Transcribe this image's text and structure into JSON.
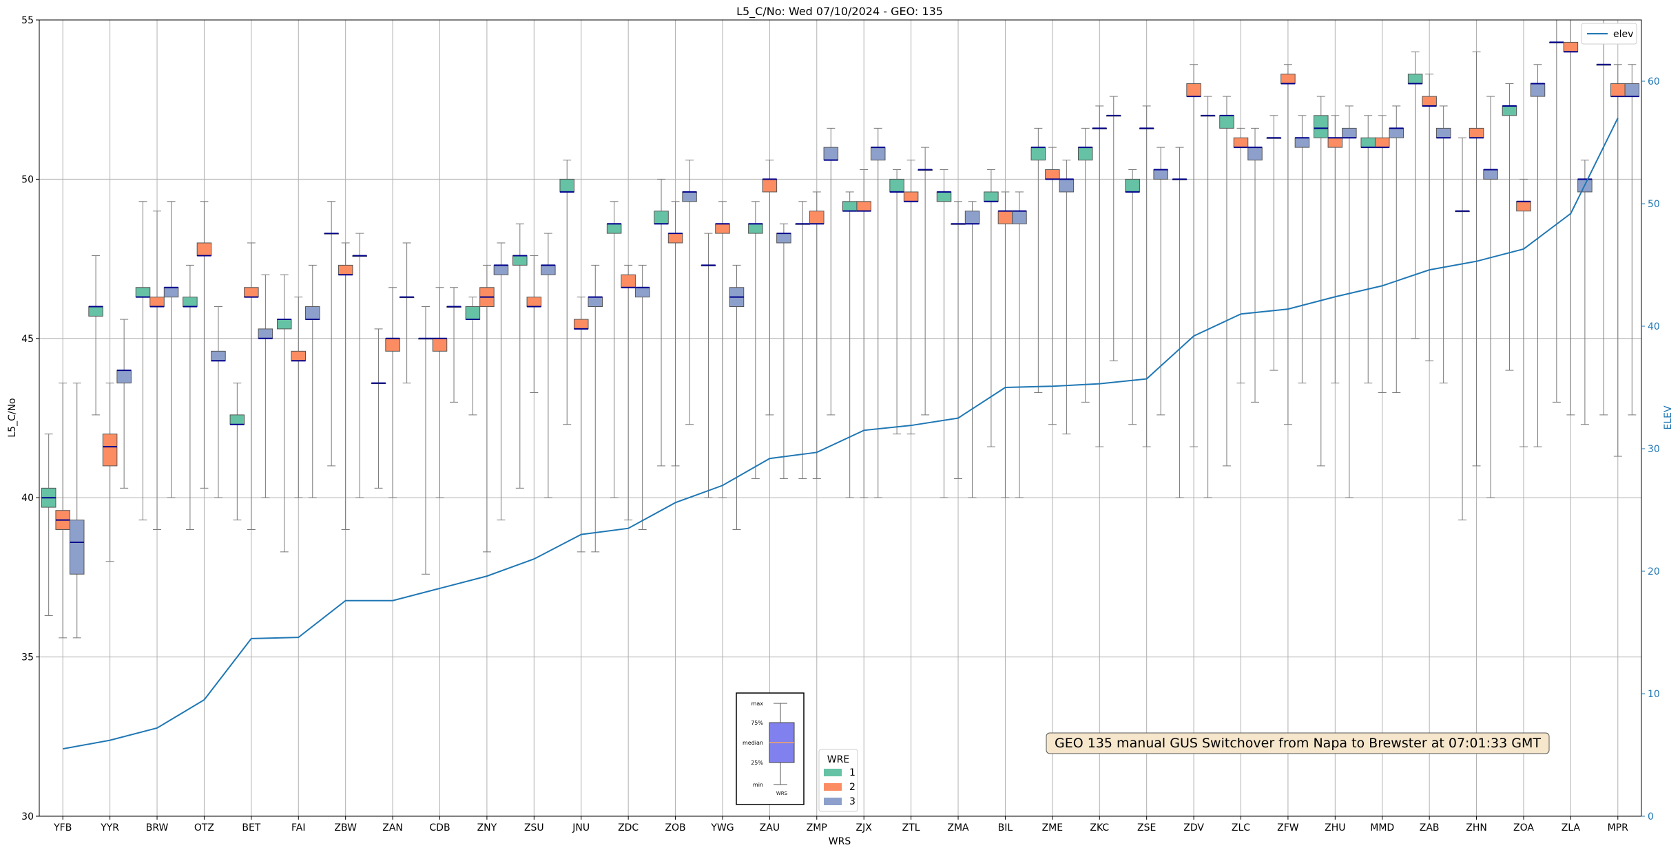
{
  "chart_data": {
    "type": "box",
    "title": "L5_C/No: Wed 07/10/2024 - GEO: 135",
    "xlabel": "WRS",
    "ylabel": "L5_C/No",
    "ylabel_right": "ELEV",
    "ylim": [
      30,
      55
    ],
    "ylim_right": [
      0,
      65
    ],
    "yticks": [
      30,
      35,
      40,
      45,
      50,
      55
    ],
    "yticks_right": [
      0,
      10,
      20,
      30,
      40,
      50,
      60
    ],
    "grid": true,
    "categories": [
      "YFB",
      "YYR",
      "BRW",
      "OTZ",
      "BET",
      "FAI",
      "ZBW",
      "ZAN",
      "CDB",
      "ZNY",
      "ZSU",
      "JNU",
      "ZDC",
      "ZOB",
      "YWG",
      "ZAU",
      "ZMP",
      "ZJX",
      "ZTL",
      "ZMA",
      "BIL",
      "ZME",
      "ZKC",
      "ZSE",
      "ZDV",
      "ZLC",
      "ZFW",
      "ZHU",
      "MMD",
      "ZAB",
      "ZHN",
      "ZOA",
      "ZLA",
      "MPR"
    ],
    "wre_colors": {
      "1": "#66c2a5",
      "2": "#fc8d62",
      "3": "#8da0cb"
    },
    "median_color": "#00008b",
    "series": [
      {
        "name": "1",
        "boxes": [
          [
            36.3,
            39.7,
            40.0,
            40.3,
            42.0
          ],
          [
            42.6,
            45.7,
            46.0,
            46.0,
            47.6
          ],
          [
            39.3,
            46.3,
            46.3,
            46.6,
            49.3
          ],
          [
            39.0,
            46.0,
            46.0,
            46.3,
            47.3
          ],
          [
            39.3,
            42.3,
            42.3,
            42.6,
            43.6
          ],
          [
            38.3,
            45.3,
            45.6,
            45.6,
            47.0
          ],
          [
            41.0,
            48.3,
            48.3,
            48.3,
            49.3
          ],
          [
            40.3,
            43.6,
            43.6,
            43.6,
            45.3
          ],
          [
            37.6,
            45.0,
            45.0,
            45.0,
            46.0
          ],
          [
            42.6,
            45.6,
            45.6,
            46.0,
            46.3
          ],
          [
            40.3,
            47.3,
            47.6,
            47.6,
            48.6
          ],
          [
            42.3,
            49.6,
            49.6,
            50.0,
            50.6
          ],
          [
            40.0,
            48.3,
            48.6,
            48.6,
            49.3
          ],
          [
            41.0,
            48.6,
            48.6,
            49.0,
            50.0
          ],
          [
            40.0,
            47.3,
            47.3,
            47.3,
            48.3
          ],
          [
            40.6,
            48.3,
            48.6,
            48.6,
            49.3
          ],
          [
            40.6,
            48.6,
            48.6,
            48.6,
            49.3
          ],
          [
            40.0,
            49.0,
            49.0,
            49.3,
            49.6
          ],
          [
            42.0,
            49.6,
            49.6,
            50.0,
            50.3
          ],
          [
            40.0,
            49.3,
            49.6,
            49.6,
            50.3
          ],
          [
            41.6,
            49.3,
            49.3,
            49.6,
            50.3
          ],
          [
            43.3,
            50.6,
            51.0,
            51.0,
            51.6
          ],
          [
            43.0,
            50.6,
            51.0,
            51.0,
            51.6
          ],
          [
            42.3,
            49.6,
            49.6,
            50.0,
            50.3
          ],
          [
            40.0,
            50.0,
            50.0,
            50.0,
            51.0
          ],
          [
            41.0,
            51.6,
            52.0,
            52.0,
            52.6
          ],
          [
            44.0,
            51.3,
            51.3,
            51.3,
            52.0
          ],
          [
            41.0,
            51.3,
            51.6,
            52.0,
            52.6
          ],
          [
            43.6,
            51.0,
            51.0,
            51.3,
            52.0
          ],
          [
            45.0,
            53.0,
            53.0,
            53.3,
            54.0
          ],
          [
            39.3,
            49.0,
            49.0,
            49.0,
            51.3
          ],
          [
            44.0,
            52.0,
            52.3,
            52.3,
            53.0
          ],
          [
            43.0,
            54.3,
            54.3,
            54.3,
            55.0
          ],
          [
            42.6,
            53.6,
            53.6,
            53.6,
            55.0
          ]
        ]
      },
      {
        "name": "2",
        "boxes": [
          [
            35.6,
            39.0,
            39.3,
            39.6,
            43.6
          ],
          [
            38.0,
            41.0,
            41.6,
            42.0,
            43.6
          ],
          [
            39.0,
            46.0,
            46.0,
            46.3,
            49.0
          ],
          [
            40.3,
            47.6,
            47.6,
            48.0,
            49.3
          ],
          [
            39.0,
            46.3,
            46.3,
            46.6,
            48.0
          ],
          [
            40.0,
            44.3,
            44.3,
            44.6,
            46.3
          ],
          [
            39.0,
            47.0,
            47.0,
            47.3,
            48.0
          ],
          [
            40.0,
            44.6,
            45.0,
            45.0,
            46.6
          ],
          [
            40.0,
            44.6,
            45.0,
            45.0,
            46.6
          ],
          [
            38.3,
            46.0,
            46.3,
            46.6,
            47.3
          ],
          [
            43.3,
            46.0,
            46.0,
            46.3,
            47.6
          ],
          [
            38.3,
            45.3,
            45.3,
            45.6,
            46.3
          ],
          [
            39.3,
            46.6,
            46.6,
            47.0,
            47.3
          ],
          [
            41.0,
            48.0,
            48.3,
            48.3,
            49.3
          ],
          [
            40.0,
            48.3,
            48.6,
            48.6,
            49.3
          ],
          [
            42.6,
            49.6,
            50.0,
            50.0,
            50.6
          ],
          [
            40.6,
            48.6,
            48.6,
            49.0,
            49.6
          ],
          [
            40.0,
            49.0,
            49.0,
            49.3,
            50.3
          ],
          [
            42.0,
            49.3,
            49.3,
            49.6,
            50.6
          ],
          [
            40.6,
            48.6,
            48.6,
            48.6,
            49.3
          ],
          [
            40.0,
            48.6,
            49.0,
            49.0,
            49.6
          ],
          [
            42.3,
            50.0,
            50.0,
            50.3,
            51.0
          ],
          [
            41.6,
            51.6,
            51.6,
            51.6,
            52.3
          ],
          [
            41.6,
            51.6,
            51.6,
            51.6,
            52.3
          ],
          [
            41.6,
            52.6,
            52.6,
            53.0,
            53.6
          ],
          [
            43.6,
            51.0,
            51.0,
            51.3,
            51.6
          ],
          [
            42.3,
            53.0,
            53.0,
            53.3,
            53.6
          ],
          [
            43.6,
            51.0,
            51.3,
            51.3,
            52.0
          ],
          [
            43.3,
            51.0,
            51.0,
            51.3,
            52.0
          ],
          [
            44.3,
            52.3,
            52.3,
            52.6,
            53.3
          ],
          [
            41.0,
            51.3,
            51.3,
            51.6,
            54.0
          ],
          [
            41.6,
            49.0,
            49.3,
            49.3,
            50.0
          ],
          [
            42.6,
            54.0,
            54.0,
            54.3,
            55.0
          ],
          [
            41.3,
            52.6,
            52.6,
            53.0,
            53.6
          ]
        ]
      },
      {
        "name": "3",
        "boxes": [
          [
            35.6,
            37.6,
            38.6,
            39.3,
            43.6
          ],
          [
            40.3,
            43.6,
            44.0,
            44.0,
            45.6
          ],
          [
            40.0,
            46.3,
            46.6,
            46.6,
            49.3
          ],
          [
            40.0,
            44.3,
            44.3,
            44.6,
            46.0
          ],
          [
            40.0,
            45.0,
            45.0,
            45.3,
            47.0
          ],
          [
            40.0,
            45.6,
            45.6,
            46.0,
            47.3
          ],
          [
            40.0,
            47.6,
            47.6,
            47.6,
            48.3
          ],
          [
            43.6,
            46.3,
            46.3,
            46.3,
            48.0
          ],
          [
            43.0,
            46.0,
            46.0,
            46.0,
            46.6
          ],
          [
            39.3,
            47.0,
            47.3,
            47.3,
            48.0
          ],
          [
            40.0,
            47.0,
            47.3,
            47.3,
            48.3
          ],
          [
            38.3,
            46.0,
            46.3,
            46.3,
            47.3
          ],
          [
            39.0,
            46.3,
            46.6,
            46.6,
            47.3
          ],
          [
            42.3,
            49.3,
            49.6,
            49.6,
            50.6
          ],
          [
            39.0,
            46.0,
            46.3,
            46.6,
            47.3
          ],
          [
            40.6,
            48.0,
            48.3,
            48.3,
            48.6
          ],
          [
            42.6,
            50.6,
            50.6,
            51.0,
            51.6
          ],
          [
            40.0,
            50.6,
            51.0,
            51.0,
            51.6
          ],
          [
            42.6,
            50.3,
            50.3,
            50.3,
            51.0
          ],
          [
            40.0,
            48.6,
            48.6,
            49.0,
            49.3
          ],
          [
            40.0,
            48.6,
            49.0,
            49.0,
            49.6
          ],
          [
            42.0,
            49.6,
            50.0,
            50.0,
            50.6
          ],
          [
            44.3,
            52.0,
            52.0,
            52.0,
            52.6
          ],
          [
            42.6,
            50.0,
            50.3,
            50.3,
            51.0
          ],
          [
            40.0,
            52.0,
            52.0,
            52.0,
            52.6
          ],
          [
            43.0,
            50.6,
            51.0,
            51.0,
            51.6
          ],
          [
            43.6,
            51.0,
            51.3,
            51.3,
            52.0
          ],
          [
            40.0,
            51.3,
            51.3,
            51.6,
            52.3
          ],
          [
            43.3,
            51.3,
            51.6,
            51.6,
            52.3
          ],
          [
            43.6,
            51.3,
            51.3,
            51.6,
            52.3
          ],
          [
            40.0,
            50.0,
            50.3,
            50.3,
            52.6
          ],
          [
            41.6,
            52.6,
            53.0,
            53.0,
            53.6
          ],
          [
            42.3,
            49.6,
            50.0,
            50.0,
            50.6
          ],
          [
            42.6,
            52.6,
            52.6,
            53.0,
            53.6
          ]
        ]
      }
    ],
    "elev_series": {
      "name": "elev",
      "values": [
        5.5,
        6.2,
        7.2,
        9.5,
        14.5,
        14.6,
        17.6,
        17.6,
        18.6,
        19.6,
        21.0,
        23.0,
        23.5,
        25.6,
        27.0,
        29.2,
        29.7,
        31.5,
        31.9,
        32.5,
        35.0,
        35.1,
        35.3,
        35.7,
        39.2,
        41.0,
        41.4,
        42.4,
        43.3,
        44.6,
        45.3,
        46.3,
        49.2,
        57.0
      ]
    },
    "legend_elev": {
      "label": "elev",
      "placement": "top-right"
    },
    "legend_wre": {
      "title": "WRE",
      "entries": [
        "1",
        "2",
        "3"
      ],
      "placement": "bottom-center"
    },
    "inset_key": {
      "labels": [
        "max",
        "75%",
        "median",
        "25%",
        "min"
      ],
      "xlabel": "WRS",
      "placement": "bottom-center"
    },
    "annotation": "GEO 135 manual GUS Switchover from Napa to Brewster at 07:01:33 GMT",
    "elev_color": "#1f77b4"
  }
}
